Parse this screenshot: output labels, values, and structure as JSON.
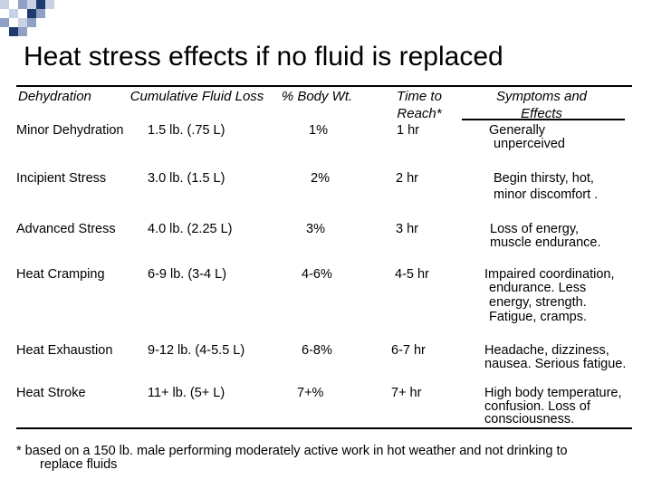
{
  "title": "Heat stress effects if no fluid is replaced",
  "headers": [
    "Dehydration",
    "Cumulative Fluid Loss",
    "% Body Wt.",
    "Time to Reach*",
    "Symptoms and Effects"
  ],
  "rows": [
    {
      "dehydration": "Minor Dehydration",
      "loss": "1.5 lb.  (.75 L)",
      "body_wt": "1%",
      "time": "1 hr",
      "symptoms": [
        "Generally",
        "unperceived"
      ]
    },
    {
      "dehydration": "Incipient Stress",
      "loss": "3.0  lb.  (1.5 L)",
      "body_wt": "2%",
      "time": "2 hr",
      "symptoms": [
        "Begin thirsty, hot,",
        "minor discomfort ."
      ]
    },
    {
      "dehydration": "Advanced Stress",
      "loss": "4.0 lb.   (2.25 L)",
      "body_wt": "3%",
      "time": "3 hr",
      "symptoms": [
        "Loss of energy,",
        "muscle endurance."
      ]
    },
    {
      "dehydration": "Heat Cramping",
      "loss": "6-9 lb.  (3-4 L)",
      "body_wt": "4-6%",
      "time": "4-5 hr",
      "symptoms": [
        "Impaired coordination,",
        "endurance.  Less",
        "energy, strength.",
        "Fatigue, cramps."
      ]
    },
    {
      "dehydration": "Heat Exhaustion",
      "loss": "9-12 lb.  (4-5.5 L)",
      "body_wt": "6-8%",
      "time": "6-7 hr",
      "symptoms": [
        "Headache, dizziness,",
        "nausea. Serious fatigue."
      ]
    },
    {
      "dehydration": "Heat Stroke",
      "loss": "11+ lb.  (5+ L)",
      "body_wt": "7+%",
      "time": "7+ hr",
      "symptoms": [
        "High body temperature,",
        "confusion. Loss of",
        "consciousness."
      ]
    }
  ],
  "footnote": [
    "* based on a 150 lb. male performing moderately active work in hot weather and not drinking to",
    "replace fluids"
  ],
  "colors": {
    "accent": "#1f3a6e",
    "light": "#c8d2e6",
    "text": "#000000"
  }
}
